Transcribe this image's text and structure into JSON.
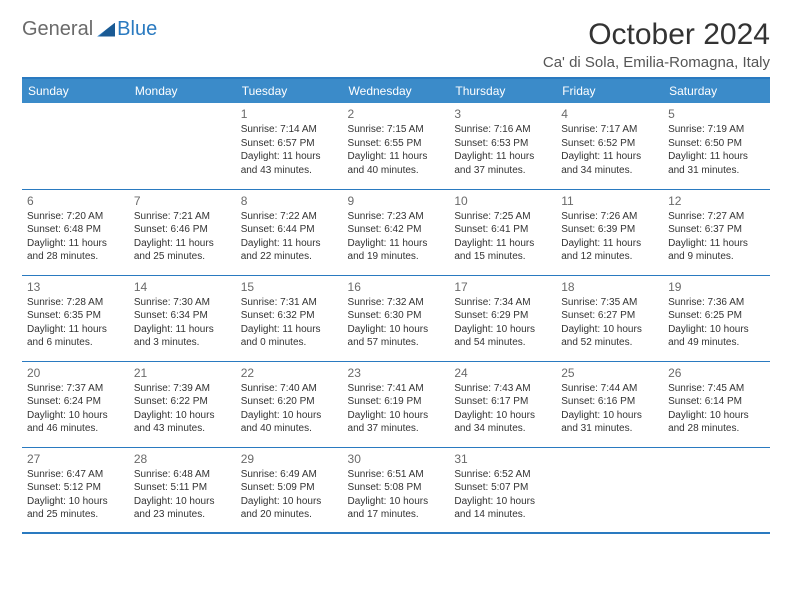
{
  "brand": {
    "part1": "General",
    "part2": "Blue"
  },
  "title": "October 2024",
  "location": "Ca' di Sola, Emilia-Romagna, Italy",
  "colors": {
    "header_bg": "#3b8bc9",
    "border": "#2a7ac0",
    "text": "#333333",
    "muted": "#6a6a6a"
  },
  "weekdays": [
    "Sunday",
    "Monday",
    "Tuesday",
    "Wednesday",
    "Thursday",
    "Friday",
    "Saturday"
  ],
  "weeks": [
    [
      null,
      null,
      {
        "n": "1",
        "sr": "Sunrise: 7:14 AM",
        "ss": "Sunset: 6:57 PM",
        "dl": "Daylight: 11 hours and 43 minutes."
      },
      {
        "n": "2",
        "sr": "Sunrise: 7:15 AM",
        "ss": "Sunset: 6:55 PM",
        "dl": "Daylight: 11 hours and 40 minutes."
      },
      {
        "n": "3",
        "sr": "Sunrise: 7:16 AM",
        "ss": "Sunset: 6:53 PM",
        "dl": "Daylight: 11 hours and 37 minutes."
      },
      {
        "n": "4",
        "sr": "Sunrise: 7:17 AM",
        "ss": "Sunset: 6:52 PM",
        "dl": "Daylight: 11 hours and 34 minutes."
      },
      {
        "n": "5",
        "sr": "Sunrise: 7:19 AM",
        "ss": "Sunset: 6:50 PM",
        "dl": "Daylight: 11 hours and 31 minutes."
      }
    ],
    [
      {
        "n": "6",
        "sr": "Sunrise: 7:20 AM",
        "ss": "Sunset: 6:48 PM",
        "dl": "Daylight: 11 hours and 28 minutes."
      },
      {
        "n": "7",
        "sr": "Sunrise: 7:21 AM",
        "ss": "Sunset: 6:46 PM",
        "dl": "Daylight: 11 hours and 25 minutes."
      },
      {
        "n": "8",
        "sr": "Sunrise: 7:22 AM",
        "ss": "Sunset: 6:44 PM",
        "dl": "Daylight: 11 hours and 22 minutes."
      },
      {
        "n": "9",
        "sr": "Sunrise: 7:23 AM",
        "ss": "Sunset: 6:42 PM",
        "dl": "Daylight: 11 hours and 19 minutes."
      },
      {
        "n": "10",
        "sr": "Sunrise: 7:25 AM",
        "ss": "Sunset: 6:41 PM",
        "dl": "Daylight: 11 hours and 15 minutes."
      },
      {
        "n": "11",
        "sr": "Sunrise: 7:26 AM",
        "ss": "Sunset: 6:39 PM",
        "dl": "Daylight: 11 hours and 12 minutes."
      },
      {
        "n": "12",
        "sr": "Sunrise: 7:27 AM",
        "ss": "Sunset: 6:37 PM",
        "dl": "Daylight: 11 hours and 9 minutes."
      }
    ],
    [
      {
        "n": "13",
        "sr": "Sunrise: 7:28 AM",
        "ss": "Sunset: 6:35 PM",
        "dl": "Daylight: 11 hours and 6 minutes."
      },
      {
        "n": "14",
        "sr": "Sunrise: 7:30 AM",
        "ss": "Sunset: 6:34 PM",
        "dl": "Daylight: 11 hours and 3 minutes."
      },
      {
        "n": "15",
        "sr": "Sunrise: 7:31 AM",
        "ss": "Sunset: 6:32 PM",
        "dl": "Daylight: 11 hours and 0 minutes."
      },
      {
        "n": "16",
        "sr": "Sunrise: 7:32 AM",
        "ss": "Sunset: 6:30 PM",
        "dl": "Daylight: 10 hours and 57 minutes."
      },
      {
        "n": "17",
        "sr": "Sunrise: 7:34 AM",
        "ss": "Sunset: 6:29 PM",
        "dl": "Daylight: 10 hours and 54 minutes."
      },
      {
        "n": "18",
        "sr": "Sunrise: 7:35 AM",
        "ss": "Sunset: 6:27 PM",
        "dl": "Daylight: 10 hours and 52 minutes."
      },
      {
        "n": "19",
        "sr": "Sunrise: 7:36 AM",
        "ss": "Sunset: 6:25 PM",
        "dl": "Daylight: 10 hours and 49 minutes."
      }
    ],
    [
      {
        "n": "20",
        "sr": "Sunrise: 7:37 AM",
        "ss": "Sunset: 6:24 PM",
        "dl": "Daylight: 10 hours and 46 minutes."
      },
      {
        "n": "21",
        "sr": "Sunrise: 7:39 AM",
        "ss": "Sunset: 6:22 PM",
        "dl": "Daylight: 10 hours and 43 minutes."
      },
      {
        "n": "22",
        "sr": "Sunrise: 7:40 AM",
        "ss": "Sunset: 6:20 PM",
        "dl": "Daylight: 10 hours and 40 minutes."
      },
      {
        "n": "23",
        "sr": "Sunrise: 7:41 AM",
        "ss": "Sunset: 6:19 PM",
        "dl": "Daylight: 10 hours and 37 minutes."
      },
      {
        "n": "24",
        "sr": "Sunrise: 7:43 AM",
        "ss": "Sunset: 6:17 PM",
        "dl": "Daylight: 10 hours and 34 minutes."
      },
      {
        "n": "25",
        "sr": "Sunrise: 7:44 AM",
        "ss": "Sunset: 6:16 PM",
        "dl": "Daylight: 10 hours and 31 minutes."
      },
      {
        "n": "26",
        "sr": "Sunrise: 7:45 AM",
        "ss": "Sunset: 6:14 PM",
        "dl": "Daylight: 10 hours and 28 minutes."
      }
    ],
    [
      {
        "n": "27",
        "sr": "Sunrise: 6:47 AM",
        "ss": "Sunset: 5:12 PM",
        "dl": "Daylight: 10 hours and 25 minutes."
      },
      {
        "n": "28",
        "sr": "Sunrise: 6:48 AM",
        "ss": "Sunset: 5:11 PM",
        "dl": "Daylight: 10 hours and 23 minutes."
      },
      {
        "n": "29",
        "sr": "Sunrise: 6:49 AM",
        "ss": "Sunset: 5:09 PM",
        "dl": "Daylight: 10 hours and 20 minutes."
      },
      {
        "n": "30",
        "sr": "Sunrise: 6:51 AM",
        "ss": "Sunset: 5:08 PM",
        "dl": "Daylight: 10 hours and 17 minutes."
      },
      {
        "n": "31",
        "sr": "Sunrise: 6:52 AM",
        "ss": "Sunset: 5:07 PM",
        "dl": "Daylight: 10 hours and 14 minutes."
      },
      null,
      null
    ]
  ]
}
